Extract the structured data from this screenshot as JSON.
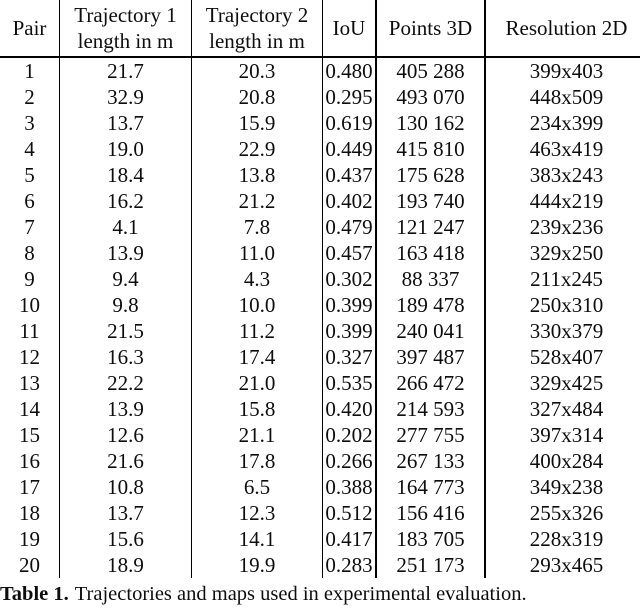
{
  "table": {
    "columns": [
      {
        "label": "Pair"
      },
      {
        "line1": "Trajectory 1",
        "line2": "length in m"
      },
      {
        "line1": "Trajectory 2",
        "line2": "length in m"
      },
      {
        "label": "IoU"
      },
      {
        "label": "Points 3D"
      },
      {
        "label": "Resolution 2D"
      }
    ],
    "rows": [
      [
        "1",
        "21.7",
        "20.3",
        "0.480",
        "405 288",
        "399x403"
      ],
      [
        "2",
        "32.9",
        "20.8",
        "0.295",
        "493 070",
        "448x509"
      ],
      [
        "3",
        "13.7",
        "15.9",
        "0.619",
        "130 162",
        "234x399"
      ],
      [
        "4",
        "19.0",
        "22.9",
        "0.449",
        "415 810",
        "463x419"
      ],
      [
        "5",
        "18.4",
        "13.8",
        "0.437",
        "175 628",
        "383x243"
      ],
      [
        "6",
        "16.2",
        "21.2",
        "0.402",
        "193 740",
        "444x219"
      ],
      [
        "7",
        "4.1",
        "7.8",
        "0.479",
        "121 247",
        "239x236"
      ],
      [
        "8",
        "13.9",
        "11.0",
        "0.457",
        "163 418",
        "329x250"
      ],
      [
        "9",
        "9.4",
        "4.3",
        "0.302",
        "88 337",
        "211x245"
      ],
      [
        "10",
        "9.8",
        "10.0",
        "0.399",
        "189 478",
        "250x310"
      ],
      [
        "11",
        "21.5",
        "11.2",
        "0.399",
        "240 041",
        "330x379"
      ],
      [
        "12",
        "16.3",
        "17.4",
        "0.327",
        "397 487",
        "528x407"
      ],
      [
        "13",
        "22.2",
        "21.0",
        "0.535",
        "266 472",
        "329x425"
      ],
      [
        "14",
        "13.9",
        "15.8",
        "0.420",
        "214 593",
        "327x484"
      ],
      [
        "15",
        "12.6",
        "21.1",
        "0.202",
        "277 755",
        "397x314"
      ],
      [
        "16",
        "21.6",
        "17.8",
        "0.266",
        "267 133",
        "400x284"
      ],
      [
        "17",
        "10.8",
        "6.5",
        "0.388",
        "164 773",
        "349x238"
      ],
      [
        "18",
        "13.7",
        "12.3",
        "0.512",
        "156 416",
        "255x326"
      ],
      [
        "19",
        "15.6",
        "14.1",
        "0.417",
        "183 705",
        "228x319"
      ],
      [
        "20",
        "18.9",
        "19.9",
        "0.283",
        "251 173",
        "293x465"
      ]
    ]
  },
  "caption": {
    "label": "Table 1.",
    "text": "Trajectories and maps used in experimental evaluation."
  }
}
